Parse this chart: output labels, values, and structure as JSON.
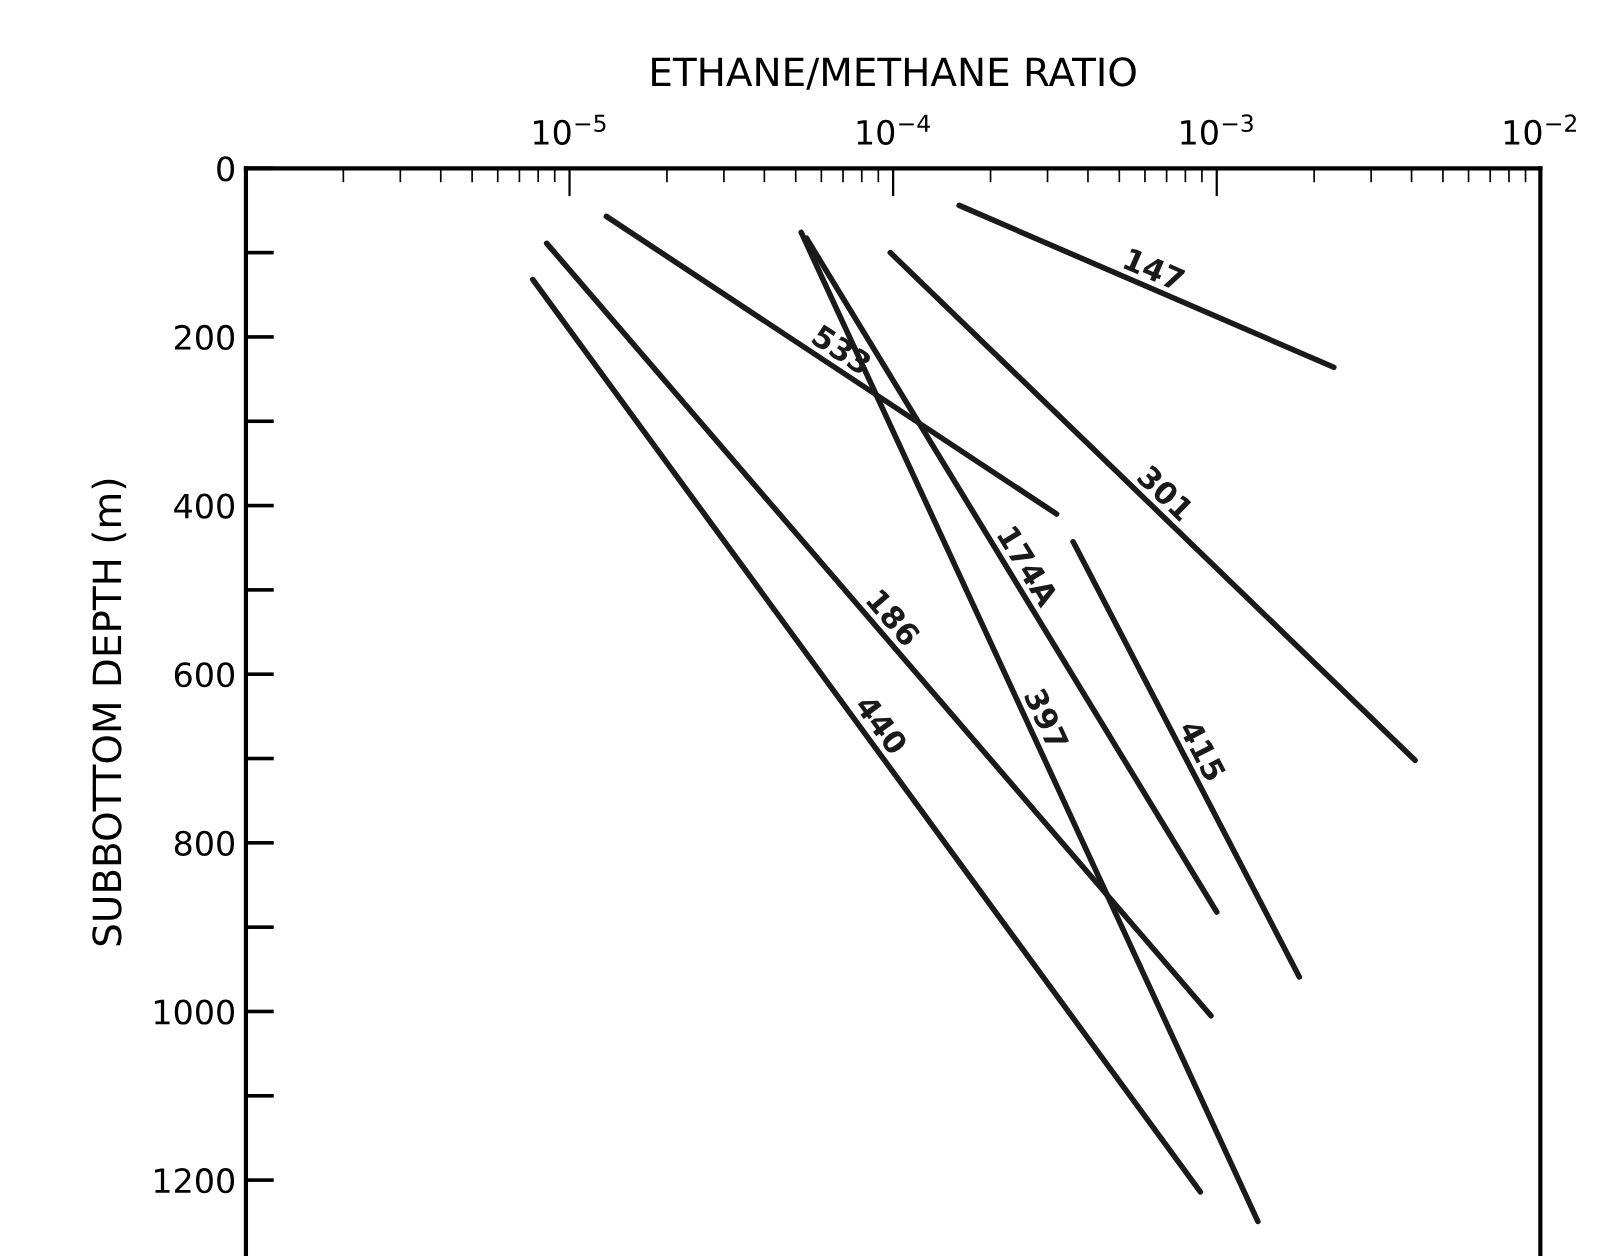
{
  "chart_data": {
    "type": "line",
    "xlabel": "ETHANE/METHANE RATIO",
    "ylabel": "SUBBOTTOM DEPTH (m)",
    "log": "x",
    "xlim": [
      1e-06,
      0.01
    ],
    "xticks": [
      {
        "value": 1e-05,
        "label": "10$^{−5}$"
      },
      {
        "value": 0.0001,
        "label": "10$^{−4}$"
      },
      {
        "value": 0.001,
        "label": "10$^{−3}$"
      },
      {
        "value": 0.01,
        "label": "10$^{−2}$"
      }
    ],
    "ylim": [
      1290,
      0
    ],
    "yticks": [
      0,
      {
        "value": 100,
        "label": null
      },
      200,
      {
        "value": 300,
        "label": null
      },
      400,
      {
        "value": 500,
        "label": null
      },
      600,
      {
        "value": 700,
        "label": null
      },
      800,
      {
        "value": 900,
        "label": null
      },
      1000,
      {
        "value": 1100,
        "label": null
      },
      1200
    ],
    "grid": false,
    "legend": false,
    "marker": "none",
    "line_style": "solid",
    "series": [
      {
        "name": "147",
        "color": "#1a1a1a",
        "x": [
          0.00016,
          0.0023
        ],
        "values": [
          44,
          236
        ]
      },
      {
        "name": "533",
        "color": "#1a1a1a",
        "x": [
          1.3e-05,
          0.00032
        ],
        "values": [
          57,
          410
        ]
      },
      {
        "name": "186",
        "color": "#1a1a1a",
        "x": [
          8.5e-06,
          0.00096
        ],
        "values": [
          89,
          1005
        ]
      },
      {
        "name": "440",
        "color": "#1a1a1a",
        "x": [
          7.7e-06,
          0.00089
        ],
        "values": [
          132,
          1214
        ]
      },
      {
        "name": "397",
        "color": "#1a1a1a",
        "x": [
          5.2e-05,
          0.00134
        ],
        "values": [
          76,
          1249
        ]
      },
      {
        "name": "174A",
        "color": "#1a1a1a",
        "x": [
          5.4e-05,
          0.001
        ],
        "values": [
          83,
          882
        ]
      },
      {
        "name": "301",
        "color": "#1a1a1a",
        "x": [
          9.8e-05,
          0.0041
        ],
        "values": [
          100,
          702
        ]
      },
      {
        "name": "415",
        "color": "#1a1a1a",
        "x": [
          0.00036,
          0.0018
        ],
        "values": [
          443,
          959
        ]
      }
    ]
  }
}
